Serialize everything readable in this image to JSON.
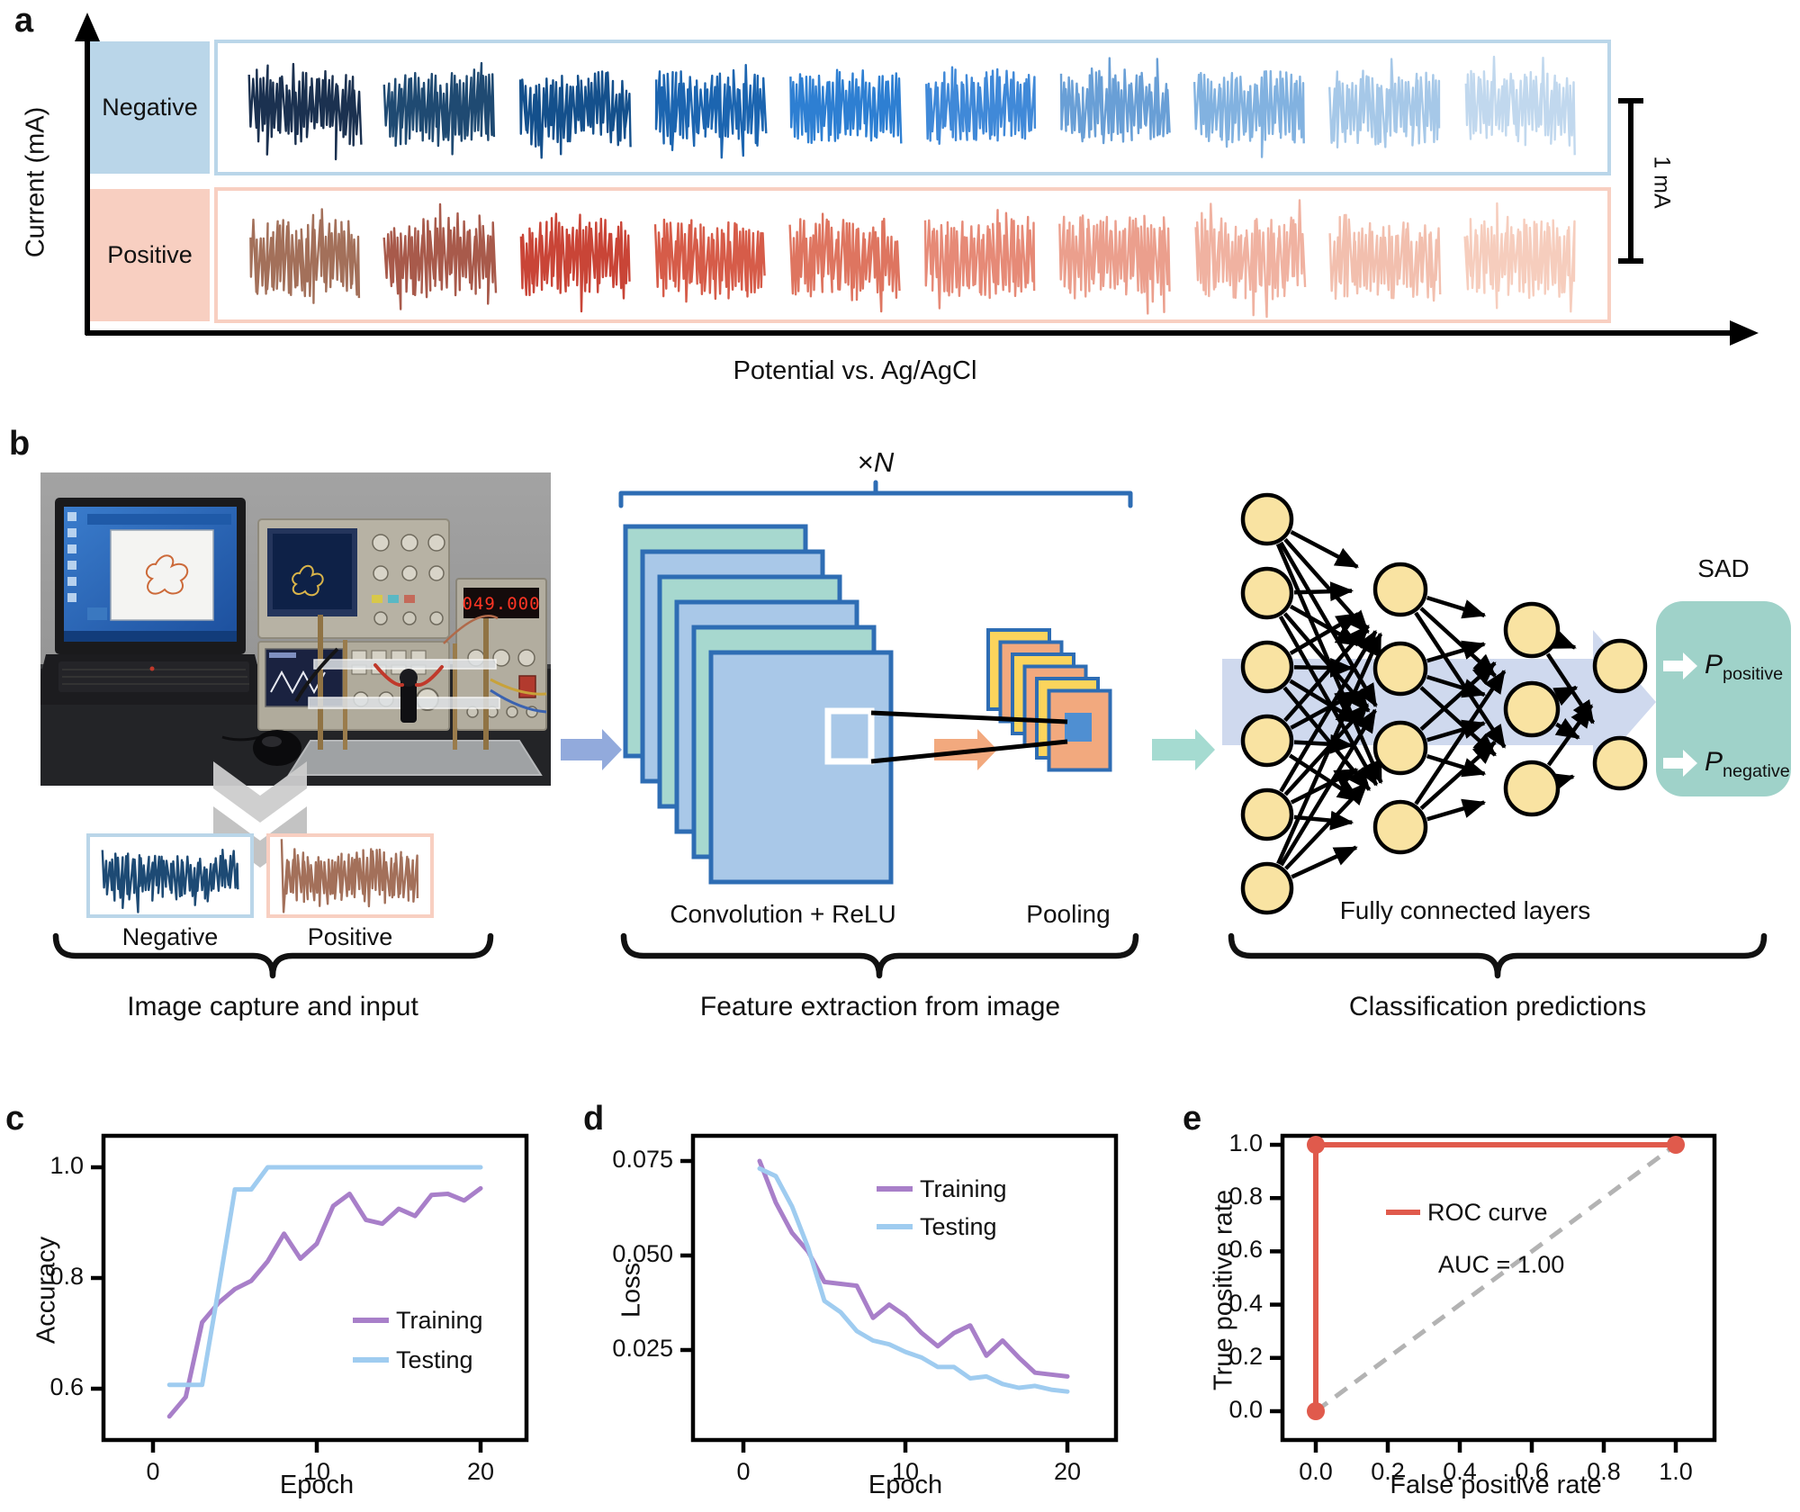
{
  "figure": {
    "panel_a": {
      "label": "a",
      "y_axis_label": "Current (mA)",
      "x_axis_label": "Potential vs. Ag/AgCl",
      "scale_bar_label": "1 mA",
      "rows": [
        {
          "label": "Negative",
          "box_color": "#bad6e9",
          "trace_colors": [
            "#1b3150",
            "#1f4a72",
            "#14508c",
            "#1c65b0",
            "#2e7fd2",
            "#4089d8",
            "#699fd6",
            "#82b2e0",
            "#a6c8e8",
            "#c1d8ee"
          ]
        },
        {
          "label": "Positive",
          "box_color": "#f8cfc1",
          "trace_colors": [
            "#a3705a",
            "#a85a4b",
            "#c94537",
            "#d65c49",
            "#de7560",
            "#e68a77",
            "#eb9f8d",
            "#f0b2a1",
            "#f2bfae",
            "#f6cdbd"
          ]
        }
      ]
    },
    "panel_b": {
      "label": "b",
      "photo": {
        "psu_display": "049.000"
      },
      "multiplier_prefix": "×",
      "multiplier_var": "N",
      "conv_label": "Convolution + ReLU",
      "pool_label": "Pooling",
      "fc_label": "Fully connected layers",
      "sad_label": "SAD",
      "outputs": [
        {
          "symbol": "P",
          "subscript": "positive"
        },
        {
          "symbol": "P",
          "subscript": "negative"
        }
      ],
      "input_boxes": [
        {
          "label": "Negative",
          "border_color": "#bad6e9",
          "trace_color": "#1d4a74"
        },
        {
          "label": "Positive",
          "border_color": "#f8cfc1",
          "trace_color": "#a3705a"
        }
      ],
      "captions": [
        "Image capture and input",
        "Feature extraction from image",
        "Classification predictions"
      ],
      "colors": {
        "conv_teal": "#a7d8cf",
        "conv_blue": "#a9c8e8",
        "stack_border": "#2e6db4",
        "pool_yellow": "#fbd45c",
        "pool_orange": "#f2a97e",
        "pool_inner": "#4f8fd2",
        "arrow_input": "#92aadc",
        "arrow_pool": "#f2a97e",
        "arrow_out": "#a5dbd1",
        "band": "#cfd9ee",
        "node_fill": "#f9e3a2",
        "node_border": "#000000",
        "sad_fill": "#9fd2c9",
        "chevron": "#c9c9c9"
      },
      "network_layers": [
        6,
        4,
        3,
        2
      ]
    }
  },
  "chart_data": [
    {
      "id": "c",
      "panel_label": "c",
      "type": "line",
      "xlabel": "Epoch",
      "ylabel": "Accuracy",
      "x": [
        1,
        2,
        3,
        4,
        5,
        6,
        7,
        8,
        9,
        10,
        11,
        12,
        13,
        14,
        15,
        16,
        17,
        18,
        19,
        20
      ],
      "series": [
        {
          "name": "Training",
          "color": "#a87fc9",
          "values": [
            0.55,
            0.585,
            0.72,
            0.755,
            0.78,
            0.795,
            0.83,
            0.88,
            0.835,
            0.862,
            0.93,
            0.952,
            0.905,
            0.898,
            0.925,
            0.912,
            0.95,
            0.952,
            0.94,
            0.962
          ]
        },
        {
          "name": "Testing",
          "color": "#9fccf0",
          "values": [
            0.607,
            0.607,
            0.607,
            0.78,
            0.96,
            0.96,
            1.0,
            1.0,
            1.0,
            1.0,
            1.0,
            1.0,
            1.0,
            1.0,
            1.0,
            1.0,
            1.0,
            1.0,
            1.0,
            1.0
          ]
        }
      ],
      "xticks": {
        "values": [
          0,
          10,
          20
        ],
        "labels": [
          "0",
          "10",
          "20"
        ]
      },
      "yticks": {
        "values": [
          1.0,
          0.8,
          0.6
        ],
        "labels": [
          "1.0",
          "0.8",
          "0.6"
        ]
      },
      "xlim": [
        -1,
        22
      ],
      "ylim": [
        0.52,
        1.05
      ],
      "grid": false,
      "legend_position": "lower right"
    },
    {
      "id": "d",
      "panel_label": "d",
      "type": "line",
      "xlabel": "Epoch",
      "ylabel": "Loss",
      "x": [
        1,
        2,
        3,
        4,
        5,
        6,
        7,
        8,
        9,
        10,
        11,
        12,
        13,
        14,
        15,
        16,
        17,
        18,
        19,
        20
      ],
      "series": [
        {
          "name": "Training",
          "color": "#a87fc9",
          "values": [
            0.075,
            0.064,
            0.056,
            0.051,
            0.043,
            0.0425,
            0.042,
            0.0335,
            0.037,
            0.034,
            0.0295,
            0.026,
            0.0295,
            0.0315,
            0.0235,
            0.0275,
            0.023,
            0.019,
            0.0185,
            0.018
          ]
        },
        {
          "name": "Testing",
          "color": "#9fccf0",
          "values": [
            0.073,
            0.071,
            0.063,
            0.052,
            0.038,
            0.035,
            0.03,
            0.0275,
            0.0265,
            0.0245,
            0.023,
            0.0205,
            0.0205,
            0.0175,
            0.018,
            0.016,
            0.015,
            0.0155,
            0.0145,
            0.014
          ]
        }
      ],
      "xticks": {
        "values": [
          0,
          10,
          20
        ],
        "labels": [
          "0",
          "10",
          "20"
        ]
      },
      "yticks": {
        "values": [
          0.075,
          0.05,
          0.025
        ],
        "labels": [
          "0.075",
          "0.050",
          "0.025"
        ]
      },
      "xlim": [
        -1,
        22
      ],
      "ylim": [
        0.01,
        0.08
      ],
      "grid": false,
      "legend_position": "upper right"
    },
    {
      "id": "e",
      "panel_label": "e",
      "type": "line",
      "xlabel": "False positive rate",
      "ylabel": "True positive rate",
      "series": [
        {
          "name": "ROC curve",
          "color": "#e05a4c",
          "x": [
            0,
            0,
            1
          ],
          "y": [
            0,
            1,
            1
          ],
          "markers": true
        }
      ],
      "annotation": "AUC = 1.00",
      "diagonal": {
        "style": "dashed",
        "color": "#b3b3b3"
      },
      "xticks": {
        "values": [
          0,
          0.2,
          0.4,
          0.6,
          0.8,
          1.0
        ],
        "labels": [
          "0.0",
          "0.2",
          "0.4",
          "0.6",
          "0.8",
          "1.0"
        ]
      },
      "yticks": {
        "values": [
          0,
          0.2,
          0.4,
          0.6,
          0.8,
          1.0
        ],
        "labels": [
          "0.0",
          "0.2",
          "0.4",
          "0.6",
          "0.8",
          "1.0"
        ]
      },
      "xlim": [
        -0.09,
        1.1
      ],
      "ylim": [
        -0.09,
        1.1
      ],
      "grid": false,
      "legend_position": "upper left inside"
    }
  ]
}
